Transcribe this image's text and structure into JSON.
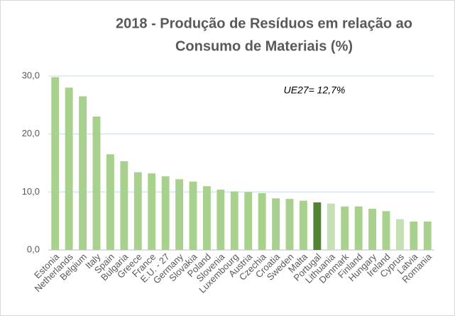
{
  "chart_data": {
    "type": "bar",
    "title": [
      "2018 - Produção de Resíduos em relação ao",
      "Consumo de Materiais (%)"
    ],
    "annotation": "UE27= 12,7%",
    "categories": [
      "Estonia",
      "Netherlands",
      "Belgium",
      "Italy",
      "Spain",
      "Bulgaria",
      "Greece",
      "France",
      "E.U. - 27",
      "Germany",
      "Slovakia",
      "Poland",
      "Slovenia",
      "Luxembourg",
      "Austria",
      "Czechia",
      "Croatia",
      "Sweden",
      "Malta",
      "Portugal",
      "Lithuania",
      "Denmark",
      "Finland",
      "Hungary",
      "Ireland",
      "Cyprus",
      "Latvia",
      "Romania"
    ],
    "values": [
      29.8,
      28.0,
      26.5,
      23.0,
      16.5,
      15.3,
      13.4,
      13.2,
      12.7,
      12.2,
      11.8,
      11.0,
      10.4,
      10.1,
      10.0,
      9.8,
      8.9,
      8.8,
      8.5,
      8.2,
      8.0,
      7.5,
      7.5,
      7.1,
      6.7,
      5.3,
      4.9,
      4.9
    ],
    "colors": [
      "#a9d18e",
      "#a9d18e",
      "#a9d18e",
      "#a9d18e",
      "#a9d18e",
      "#a9d18e",
      "#a9d18e",
      "#a9d18e",
      "#a9d18e",
      "#a9d18e",
      "#a9d18e",
      "#a9d18e",
      "#a9d18e",
      "#a9d18e",
      "#a9d18e",
      "#a9d18e",
      "#a9d18e",
      "#a9d18e",
      "#a9d18e",
      "#548235",
      "#c5e0b4",
      "#a9d18e",
      "#a9d18e",
      "#a9d18e",
      "#a9d18e",
      "#c5e0b4",
      "#a9d18e",
      "#a9d18e"
    ],
    "ylim": [
      0,
      30
    ],
    "yticks": [
      {
        "value": 0,
        "label": "0,0"
      },
      {
        "value": 10,
        "label": "10,0"
      },
      {
        "value": 20,
        "label": "20,0"
      },
      {
        "value": 30,
        "label": "30,0"
      }
    ],
    "grid": true
  }
}
